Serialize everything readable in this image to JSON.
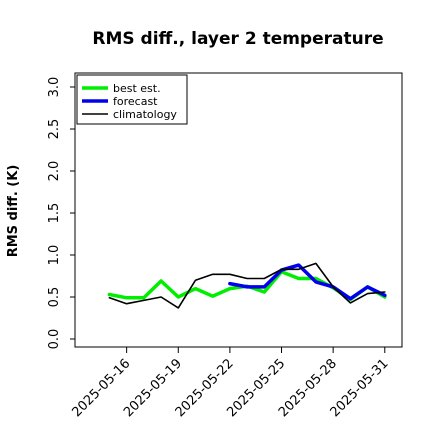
{
  "chart_data": {
    "type": "line",
    "title": "RMS diff., layer 2 temperature",
    "xlabel": "",
    "ylabel": "RMS diff. (K)",
    "ylim": [
      0,
      3.0
    ],
    "yticks": [
      "0.0",
      "0.5",
      "1.0",
      "1.5",
      "2.0",
      "2.5",
      "3.0"
    ],
    "xlim": [
      "2025-05-13",
      "2025-06-01"
    ],
    "xticks": [
      {
        "label": "2025-05-16",
        "color": "#000000"
      },
      {
        "label": "2025-05-19",
        "color": "#000000"
      },
      {
        "label": "2025-05-22",
        "color": "#2e8b2e"
      },
      {
        "label": "2025-05-25",
        "color": "#000000"
      },
      {
        "label": "2025-05-28",
        "color": "#000000"
      },
      {
        "label": "2025-05-31",
        "color": "#000000"
      }
    ],
    "grid": false,
    "legend_position": "top-left",
    "series": [
      {
        "name": "best est.",
        "color": "#00ee00",
        "width": 3.5,
        "x": [
          "2025-05-15",
          "2025-05-16",
          "2025-05-17",
          "2025-05-18",
          "2025-05-19",
          "2025-05-20",
          "2025-05-21",
          "2025-05-22",
          "2025-05-23",
          "2025-05-24",
          "2025-05-25",
          "2025-05-26",
          "2025-05-27",
          "2025-05-28",
          "2025-05-29",
          "2025-05-30",
          "2025-05-31"
        ],
        "values": [
          0.53,
          0.49,
          0.49,
          0.69,
          0.5,
          0.6,
          0.51,
          0.6,
          0.63,
          0.56,
          0.8,
          0.72,
          0.72,
          0.61,
          0.47,
          0.62,
          0.5
        ]
      },
      {
        "name": "forecast",
        "color": "#0000ee",
        "width": 3.5,
        "x": [
          "2025-05-22",
          "2025-05-23",
          "2025-05-24",
          "2025-05-25",
          "2025-05-26",
          "2025-05-27",
          "2025-05-28",
          "2025-05-29",
          "2025-05-30",
          "2025-05-31"
        ],
        "values": [
          0.66,
          0.62,
          0.62,
          0.82,
          0.88,
          0.68,
          0.62,
          0.48,
          0.62,
          0.52
        ]
      },
      {
        "name": "climatology",
        "color": "#000000",
        "width": 1.6,
        "x": [
          "2025-05-15",
          "2025-05-16",
          "2025-05-17",
          "2025-05-18",
          "2025-05-19",
          "2025-05-20",
          "2025-05-21",
          "2025-05-22",
          "2025-05-23",
          "2025-05-24",
          "2025-05-25",
          "2025-05-26",
          "2025-05-27",
          "2025-05-28",
          "2025-05-29",
          "2025-05-30",
          "2025-05-31"
        ],
        "values": [
          0.49,
          0.42,
          0.46,
          0.5,
          0.37,
          0.7,
          0.77,
          0.77,
          0.72,
          0.72,
          0.83,
          0.83,
          0.9,
          0.62,
          0.43,
          0.54,
          0.56
        ]
      }
    ]
  }
}
